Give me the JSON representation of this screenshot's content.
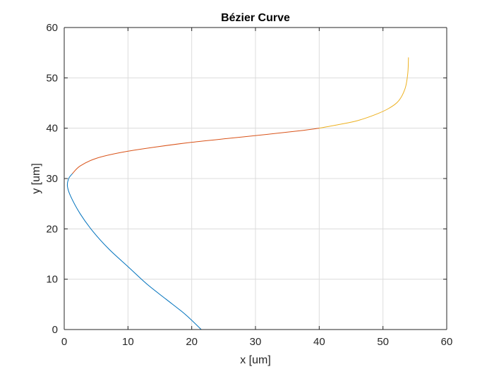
{
  "chart_data": {
    "type": "line",
    "title": "Bézier Curve",
    "xlabel": "x [um]",
    "ylabel": "y [um]",
    "xlim": [
      0,
      60
    ],
    "ylim": [
      0,
      60
    ],
    "xticks": [
      "0",
      "10",
      "20",
      "30",
      "40",
      "50",
      "60"
    ],
    "yticks": [
      "0",
      "10",
      "20",
      "30",
      "40",
      "50",
      "60"
    ],
    "grid": true,
    "legend": "none",
    "series": [
      {
        "color": "#0072BD",
        "x": [
          21.5,
          19.0,
          16.0,
          13.0,
          10.0,
          7.0,
          4.5,
          2.5,
          1.0,
          0.5,
          0.7,
          1.3
        ],
        "y": [
          0.0,
          3.0,
          6.0,
          9.0,
          12.5,
          16.0,
          19.5,
          23.0,
          26.5,
          28.5,
          30.0,
          31.0
        ]
      },
      {
        "color": "#D95319",
        "x": [
          1.3,
          2.5,
          5.0,
          9.0,
          14.0,
          20.0,
          26.0,
          32.0,
          37.0,
          40.0
        ],
        "y": [
          31.0,
          32.5,
          34.0,
          35.2,
          36.2,
          37.2,
          38.0,
          38.8,
          39.5,
          40.0
        ]
      },
      {
        "color": "#EDB120",
        "x": [
          40.0,
          43.0,
          46.0,
          49.0,
          51.0,
          52.5,
          53.5,
          53.9,
          54.0
        ],
        "y": [
          40.0,
          40.7,
          41.5,
          42.8,
          44.0,
          45.5,
          48.0,
          51.0,
          54.0
        ]
      }
    ]
  }
}
